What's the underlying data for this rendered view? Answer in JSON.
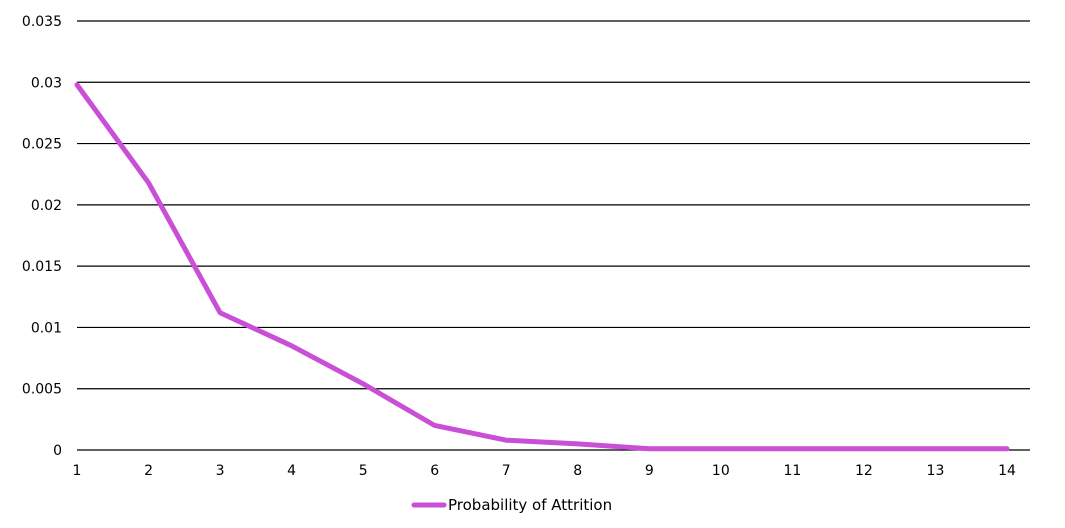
{
  "chart_data": {
    "type": "line",
    "title": "",
    "xlabel": "",
    "ylabel": "",
    "categories": [
      "1",
      "2",
      "3",
      "4",
      "5",
      "6",
      "7",
      "8",
      "9",
      "10",
      "11",
      "12",
      "13",
      "14"
    ],
    "series": [
      {
        "name": "Probability of Attrition",
        "color": "#C94FD6",
        "values": [
          0.0298,
          0.0218,
          0.0112,
          0.0085,
          0.0054,
          0.002,
          0.0008,
          0.0005,
          0.0001,
          0.0001,
          0.0001,
          0.0001,
          0.0001,
          0.0001
        ]
      }
    ],
    "yticks": [
      "0",
      "0.005",
      "0.01",
      "0.015",
      "0.02",
      "0.025",
      "0.03",
      "0.035"
    ],
    "ylim": [
      0,
      0.035
    ],
    "grid": true,
    "legend_position": "bottom"
  }
}
